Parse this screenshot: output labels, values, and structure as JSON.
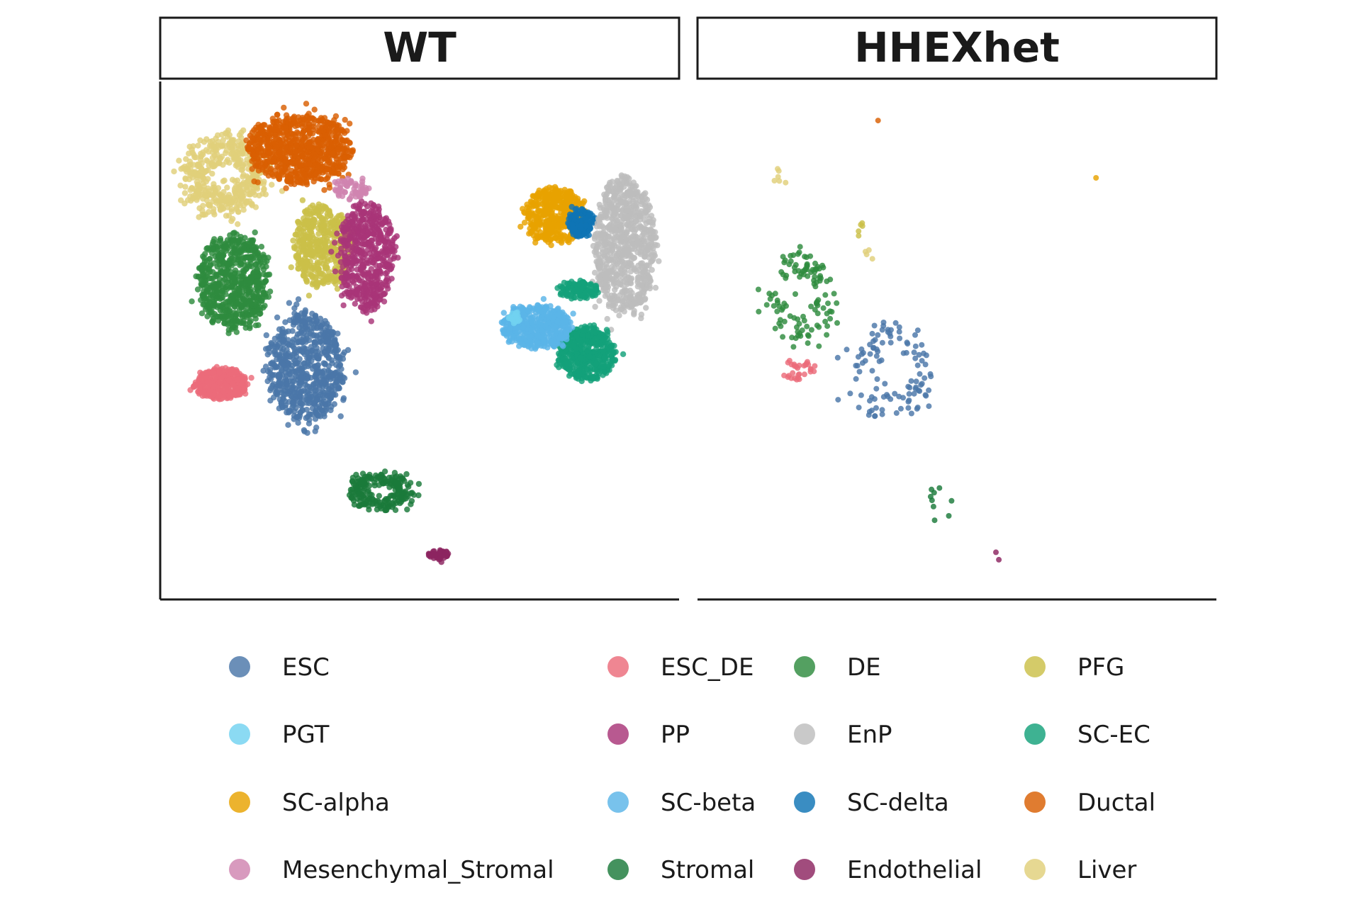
{
  "chart_data": {
    "type": "scatter",
    "title": "",
    "xlabel": "",
    "ylabel": "",
    "panels": [
      "WT",
      "HHEXhet"
    ],
    "legend": {
      "position": "bottom",
      "entries": [
        {
          "name": "ESC",
          "color": "#4a76a8"
        },
        {
          "name": "ESC_DE",
          "color": "#ec6b7a"
        },
        {
          "name": "DE",
          "color": "#2e8b3e"
        },
        {
          "name": "PFG",
          "color": "#cbbf48"
        },
        {
          "name": "PGT",
          "color": "#72d2f0"
        },
        {
          "name": "PP",
          "color": "#a83578"
        },
        {
          "name": "EnP",
          "color": "#bdbdbd"
        },
        {
          "name": "SC-EC",
          "color": "#14a17a"
        },
        {
          "name": "SC-alpha",
          "color": "#e8a200"
        },
        {
          "name": "SC-beta",
          "color": "#5ab4e8"
        },
        {
          "name": "SC-delta",
          "color": "#0f74b4"
        },
        {
          "name": "Ductal",
          "color": "#d95f02"
        },
        {
          "name": "Mesenchymal_Stromal",
          "color": "#cf84b0"
        },
        {
          "name": "Stromal",
          "color": "#1b7a3a"
        },
        {
          "name": "Endothelial",
          "color": "#8c2460"
        },
        {
          "name": "Liver",
          "color": "#e0d07a"
        }
      ]
    },
    "clusters": {
      "WT": [
        {
          "type": "ESC",
          "shape": "blob",
          "cx": -4.6,
          "cy": -1.3,
          "rx": 1.3,
          "ry": 1.75,
          "n": 700
        },
        {
          "type": "ESC_DE",
          "shape": "blob",
          "cx": -7.3,
          "cy": -1.8,
          "rx": 0.9,
          "ry": 0.5,
          "n": 350
        },
        {
          "type": "DE",
          "shape": "blob",
          "cx": -6.9,
          "cy": 1.2,
          "rx": 1.2,
          "ry": 1.55,
          "n": 650
        },
        {
          "type": "PFG",
          "shape": "blob",
          "cx": -4.1,
          "cy": 2.3,
          "rx": 1.0,
          "ry": 1.3,
          "n": 450
        },
        {
          "type": "Liver",
          "shape": "ring",
          "cx": -7.2,
          "cy": 4.4,
          "rx": 1.25,
          "ry": 1.1,
          "n": 450
        },
        {
          "type": "Ductal",
          "shape": "blob",
          "cx": -4.8,
          "cy": 5.2,
          "rx": 1.8,
          "ry": 1.1,
          "n": 800
        },
        {
          "type": "PP",
          "shape": "blob",
          "cx": -2.7,
          "cy": 2.0,
          "rx": 0.95,
          "ry": 1.75,
          "n": 550
        },
        {
          "type": "Mesenchymal_Stromal",
          "shape": "blob",
          "cx": -3.2,
          "cy": 4.0,
          "rx": 0.6,
          "ry": 0.35,
          "n": 60
        },
        {
          "type": "SC-alpha",
          "shape": "blob",
          "cx": 3.3,
          "cy": 3.2,
          "rx": 1.0,
          "ry": 0.9,
          "n": 450
        },
        {
          "type": "SC-delta",
          "shape": "blob",
          "cx": 4.1,
          "cy": 3.0,
          "rx": 0.45,
          "ry": 0.45,
          "n": 150
        },
        {
          "type": "EnP",
          "shape": "blob",
          "cx": 5.5,
          "cy": 2.3,
          "rx": 1.05,
          "ry": 2.2,
          "n": 800
        },
        {
          "type": "SC-EC",
          "shape": "blob",
          "cx": 4.3,
          "cy": -0.9,
          "rx": 0.95,
          "ry": 0.85,
          "n": 500
        },
        {
          "type": "SC-EC",
          "shape": "blob",
          "cx": 4.0,
          "cy": 1.0,
          "rx": 0.7,
          "ry": 0.3,
          "n": 120
        },
        {
          "type": "SC-beta",
          "shape": "blob",
          "cx": 2.7,
          "cy": -0.1,
          "rx": 1.2,
          "ry": 0.7,
          "n": 500
        },
        {
          "type": "PGT",
          "shape": "blob",
          "cx": 2.0,
          "cy": 0.2,
          "rx": 0.2,
          "ry": 0.25,
          "n": 20
        },
        {
          "type": "Stromal",
          "shape": "ring",
          "cx": -2.2,
          "cy": -5.0,
          "rx": 0.95,
          "ry": 0.5,
          "n": 220
        },
        {
          "type": "Endothelial",
          "shape": "blob",
          "cx": -0.4,
          "cy": -6.9,
          "rx": 0.35,
          "ry": 0.18,
          "n": 60
        }
      ],
      "HHEXhet": [
        {
          "type": "DE",
          "shape": "ring",
          "cx": -6.0,
          "cy": 0.8,
          "rx": 1.0,
          "ry": 1.25,
          "n": 120
        },
        {
          "type": "ESC",
          "shape": "ring",
          "cx": -3.1,
          "cy": -1.4,
          "rx": 1.25,
          "ry": 1.3,
          "n": 110
        },
        {
          "type": "ESC_DE",
          "shape": "blob",
          "cx": -6.0,
          "cy": -1.4,
          "rx": 0.6,
          "ry": 0.35,
          "n": 30
        },
        {
          "type": "Liver",
          "shape": "blob",
          "cx": -6.6,
          "cy": 4.2,
          "rx": 0.25,
          "ry": 0.5,
          "n": 6
        },
        {
          "type": "PFG",
          "shape": "blob",
          "cx": -4.1,
          "cy": 2.8,
          "rx": 0.2,
          "ry": 0.6,
          "n": 5
        },
        {
          "type": "Liver",
          "shape": "blob",
          "cx": -3.8,
          "cy": 2.0,
          "rx": 0.3,
          "ry": 0.3,
          "n": 4
        },
        {
          "type": "Ductal",
          "shape": "blob",
          "cx": -3.5,
          "cy": 6.0,
          "rx": 0.05,
          "ry": 0.05,
          "n": 1
        },
        {
          "type": "SC-alpha",
          "shape": "blob",
          "cx": 3.4,
          "cy": 4.3,
          "rx": 0.05,
          "ry": 0.05,
          "n": 1
        },
        {
          "type": "Stromal",
          "shape": "blob",
          "cx": -1.6,
          "cy": -5.3,
          "rx": 0.7,
          "ry": 0.7,
          "n": 9
        },
        {
          "type": "Endothelial",
          "shape": "blob",
          "cx": 0.3,
          "cy": -6.9,
          "rx": 0.1,
          "ry": 0.2,
          "n": 2
        }
      ]
    },
    "xlim": [
      -9,
      7
    ],
    "ylim": [
      -8,
      7
    ],
    "axes_visible": false
  }
}
